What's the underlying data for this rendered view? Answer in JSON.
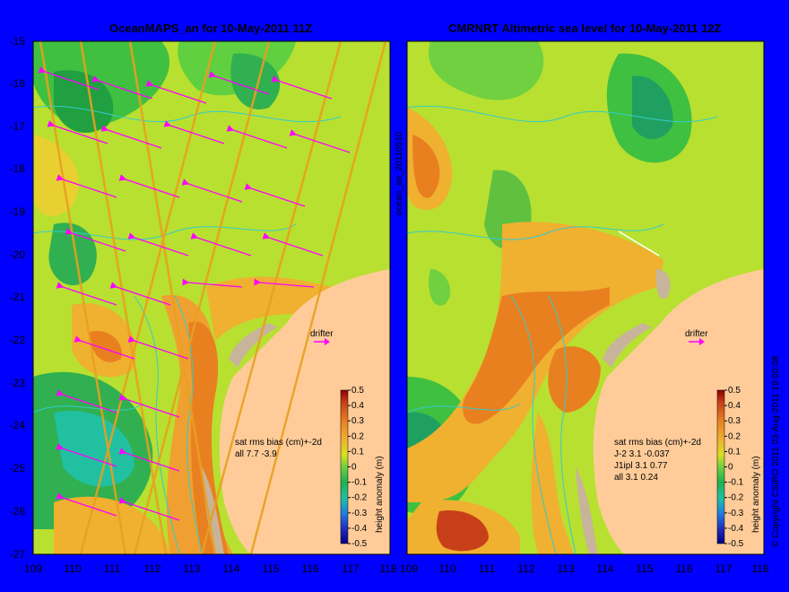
{
  "left_panel": {
    "title": "OceanMAPS_an for 10-May-2011 11Z",
    "stats": [
      "sat rms bias (cm)+-2d",
      "all 7.7 -3.9"
    ],
    "drifter_label": "drifter"
  },
  "right_panel": {
    "title": "CMRNRT Altimetric sea level  for 10-May-2011 12Z",
    "stats": [
      "sat rms bias (cm)+-2d",
      "J-2   3.1 -0.037",
      "J1ipl 3.1 0.77",
      "all 3.1 0.24"
    ],
    "drifter_label": "drifter"
  },
  "side_label": "ocean_an_20110510",
  "copyright": "© Copyright CSIRO 2011   03-Aug-2011 19:00:08",
  "colorbar": {
    "label": "height anomaly (m)",
    "ticks": [
      "0.5",
      "0.4",
      "0.3",
      "0.2",
      "0.1",
      "0",
      "-0.1",
      "-0.2",
      "-0.3",
      "-0.4",
      "-0.5"
    ]
  },
  "axes": {
    "lat_labels": [
      "-15",
      "-16",
      "-17",
      "-18",
      "-19",
      "-20",
      "-21",
      "-22",
      "-23",
      "-24",
      "-25",
      "-26",
      "-27"
    ],
    "lon_labels": [
      "109",
      "110",
      "111",
      "112",
      "113",
      "114",
      "115",
      "116",
      "117",
      "118"
    ]
  },
  "colors": {
    "background": "#0000ff",
    "land": "#ffcc99",
    "shelf": "#c8b49a",
    "vectors": "#ff00ff",
    "contours": "#33cccc"
  }
}
